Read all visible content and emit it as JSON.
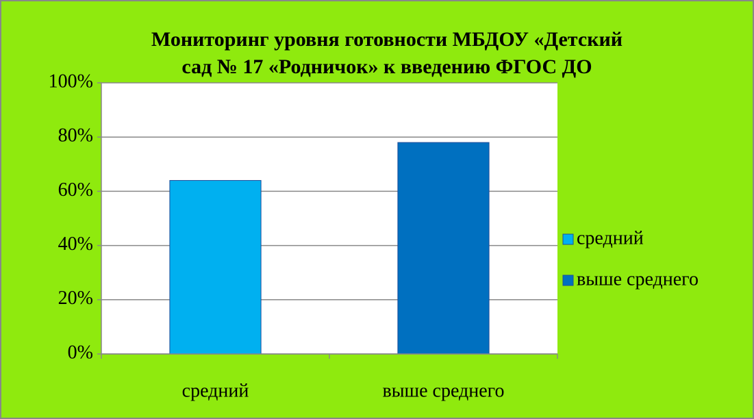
{
  "chart_data": {
    "type": "bar",
    "title": [
      "Мониторинг уровня готовности МБДОУ «Детский",
      "сад № 17 «Родничок» к введению ФГОС ДО"
    ],
    "categories": [
      "средний",
      "выше среднего"
    ],
    "series": [
      {
        "name": "средний",
        "color": "#00b0f0",
        "values": [
          64,
          null
        ]
      },
      {
        "name": "выше среднего",
        "color": "#0070c0",
        "values": [
          null,
          78
        ]
      }
    ],
    "ylim": [
      0,
      100
    ],
    "yticks": [
      {
        "value": 0,
        "label": "0%"
      },
      {
        "value": 20,
        "label": "20%"
      },
      {
        "value": 40,
        "label": "40%"
      },
      {
        "value": 60,
        "label": "60%"
      },
      {
        "value": 80,
        "label": "80%"
      },
      {
        "value": 100,
        "label": "100%"
      }
    ],
    "grid": true,
    "legend": "right"
  }
}
